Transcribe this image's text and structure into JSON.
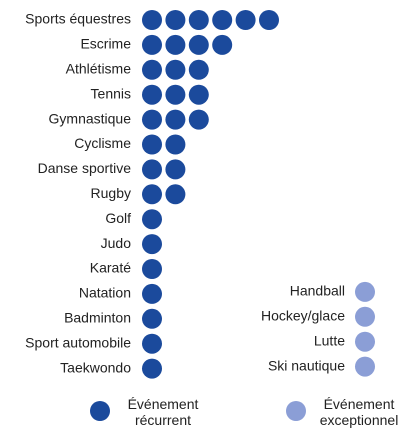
{
  "chart_data": {
    "type": "dot",
    "series": [
      {
        "name": "Événement récurrent",
        "color": "#1b4a9c",
        "categories": [
          "Sports équestres",
          "Escrime",
          "Athlétisme",
          "Tennis",
          "Gymnastique",
          "Cyclisme",
          "Danse sportive",
          "Rugby",
          "Golf",
          "Judo",
          "Karaté",
          "Natation",
          "Badminton",
          "Sport automobile",
          "Taekwondo"
        ],
        "values": [
          6,
          4,
          3,
          3,
          3,
          2,
          2,
          2,
          1,
          1,
          1,
          1,
          1,
          1,
          1
        ]
      },
      {
        "name": "Événement exceptionnel",
        "color": "#8b9ed6",
        "categories": [
          "Handball",
          "Hockey/glace",
          "Lutte",
          "Ski nautique"
        ],
        "values": [
          1,
          1,
          1,
          1
        ]
      }
    ]
  }
}
